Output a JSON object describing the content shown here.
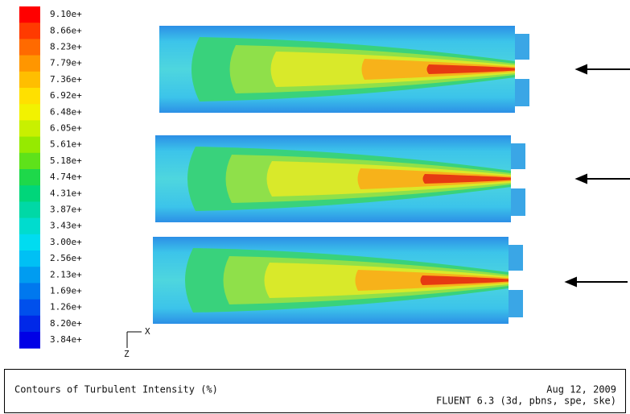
{
  "colorbar": {
    "items": [
      {
        "label": "9.10e+",
        "color": "#ff0000"
      },
      {
        "label": "8.66e+",
        "color": "#ff3a00"
      },
      {
        "label": "8.23e+",
        "color": "#ff6a00"
      },
      {
        "label": "7.79e+",
        "color": "#ff9600"
      },
      {
        "label": "7.36e+",
        "color": "#ffbe00"
      },
      {
        "label": "6.92e+",
        "color": "#ffe000"
      },
      {
        "label": "6.48e+",
        "color": "#f2f200"
      },
      {
        "label": "6.05e+",
        "color": "#c8f000"
      },
      {
        "label": "5.61e+",
        "color": "#96ea00"
      },
      {
        "label": "5.18e+",
        "color": "#5ee21a"
      },
      {
        "label": "4.74e+",
        "color": "#1ed84a"
      },
      {
        "label": "4.31e+",
        "color": "#00d67a"
      },
      {
        "label": "3.87e+",
        "color": "#00d8a6"
      },
      {
        "label": "3.43e+",
        "color": "#00dcce"
      },
      {
        "label": "3.00e+",
        "color": "#00dcf0"
      },
      {
        "label": "2.56e+",
        "color": "#00c0f4"
      },
      {
        "label": "2.13e+",
        "color": "#009cf0"
      },
      {
        "label": "1.69e+",
        "color": "#0078ee"
      },
      {
        "label": "1.26e+",
        "color": "#0050ec"
      },
      {
        "label": "8.20e+",
        "color": "#0028e8"
      },
      {
        "label": "3.84e+",
        "color": "#0000e6"
      }
    ]
  },
  "axes": {
    "x": "X",
    "z": "Z"
  },
  "footer": {
    "title": "Contours of Turbulent Intensity (%)",
    "date": "Aug 12, 2009",
    "solver": "FLUENT 6.3 (3d, pbns, spe, ske)"
  }
}
